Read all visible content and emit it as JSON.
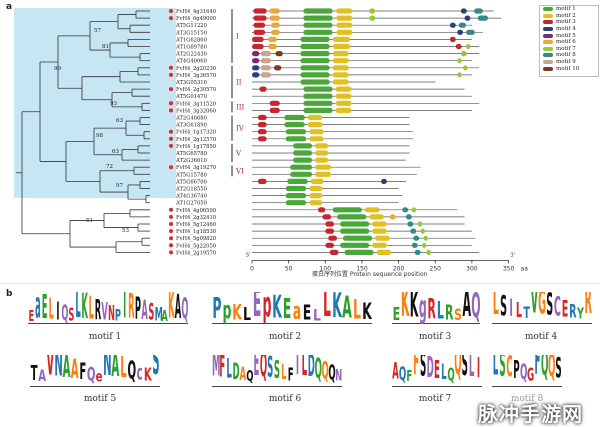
{
  "panel_labels": {
    "a": "a",
    "b": "b"
  },
  "taxa": [
    {
      "name": "FvH4_4g31640",
      "mark": "red"
    },
    {
      "name": "FvH4_6g49000",
      "mark": "red"
    },
    {
      "name": "AT5G11220",
      "mark": "none"
    },
    {
      "name": "AT3G15150",
      "mark": "none"
    },
    {
      "name": "AT1G62860",
      "mark": "none"
    },
    {
      "name": "AT1G69780",
      "mark": "none"
    },
    {
      "name": "AT2G22430",
      "mark": "none"
    },
    {
      "name": "AT4G40060",
      "mark": "none"
    },
    {
      "name": "FvH4_2g20230",
      "mark": "red"
    },
    {
      "name": "FvH4_3g36570",
      "mark": "red"
    },
    {
      "name": "AT3G05310",
      "mark": "none"
    },
    {
      "name": "FvH4_2g30570",
      "mark": "red"
    },
    {
      "name": "AT5G01470",
      "mark": "none"
    },
    {
      "name": "FvH4_3g11520",
      "mark": "red"
    },
    {
      "name": "FvH4_3g32060",
      "mark": "red"
    },
    {
      "name": "AT2G46680",
      "mark": "none"
    },
    {
      "name": "AT3G61890",
      "mark": "none"
    },
    {
      "name": "FvH4_1g17320",
      "mark": "red"
    },
    {
      "name": "FvH4_2g12570",
      "mark": "red"
    },
    {
      "name": "FvH4_1g17850",
      "mark": "red"
    },
    {
      "name": "AT5G65780",
      "mark": "none"
    },
    {
      "name": "AT2G36610",
      "mark": "none"
    },
    {
      "name": "FvH4_3g19270",
      "mark": "red"
    },
    {
      "name": "AT5G15780",
      "mark": "none"
    },
    {
      "name": "AT5G66700",
      "mark": "none"
    },
    {
      "name": "AT2G18550",
      "mark": "none"
    },
    {
      "name": "AT4G36740",
      "mark": "none"
    },
    {
      "name": "AT1G27050",
      "mark": "none"
    },
    {
      "name": "FvH4_4g06590",
      "mark": "red"
    },
    {
      "name": "FvH4_2g32410",
      "mark": "red"
    },
    {
      "name": "FvH4_5g12460",
      "mark": "red"
    },
    {
      "name": "FvH4_1g18530",
      "mark": "red"
    },
    {
      "name": "FvH4_5g09820",
      "mark": "red"
    },
    {
      "name": "FvH4_5g22050",
      "mark": "red"
    },
    {
      "name": "FvH4_2g19570",
      "mark": "red"
    }
  ],
  "bootstrap": [
    "57",
    "81",
    "99",
    "93",
    "63",
    "98",
    "63",
    "72",
    "97",
    "51",
    "53"
  ],
  "groups": [
    "I",
    "II",
    "III",
    "IV",
    "V",
    "VI"
  ],
  "legend": [
    {
      "label": "motif 1",
      "color": "#4aa83a"
    },
    {
      "label": "motif 2",
      "color": "#e3c021"
    },
    {
      "label": "motif 3",
      "color": "#c8262f"
    },
    {
      "label": "motif 4",
      "color": "#2e3f7a"
    },
    {
      "label": "motif 5",
      "color": "#7a2d6e"
    },
    {
      "label": "motif 6",
      "color": "#e9a93a"
    },
    {
      "label": "motif 7",
      "color": "#93c93a"
    },
    {
      "label": "motif 8",
      "color": "#2e8b88"
    },
    {
      "label": "motif 9",
      "color": "#c9a48f"
    },
    {
      "label": "motif 10",
      "color": "#7a3a22"
    }
  ],
  "axis": {
    "ticks": [
      "0",
      "50",
      "100",
      "150",
      "200",
      "250",
      "300",
      "350"
    ],
    "unit": "aa",
    "label": "蛋白序列位置 Protein sequence position",
    "end5": "5'",
    "end3": "3'"
  },
  "motifs_panel": {
    "captions": [
      "motif 1",
      "motif 2",
      "motif 3",
      "motif 4",
      "motif 5",
      "motif 6",
      "motif 7",
      "motif 8"
    ],
    "logo_text": [
      "EaELIQSLKLRVNPIRPASMAKAQ",
      "PpKLEpKEaELLKALK",
      "EKKgRLRSAQ",
      "LSILTVGSCERYR",
      "TAVNAAFQeNALQcKS",
      "MFLDAQEQSSLFILDQQQN",
      "AQFFSDELQQSLI",
      "LSCPQGFQQS"
    ]
  },
  "watermark": "脉冲手游网"
}
